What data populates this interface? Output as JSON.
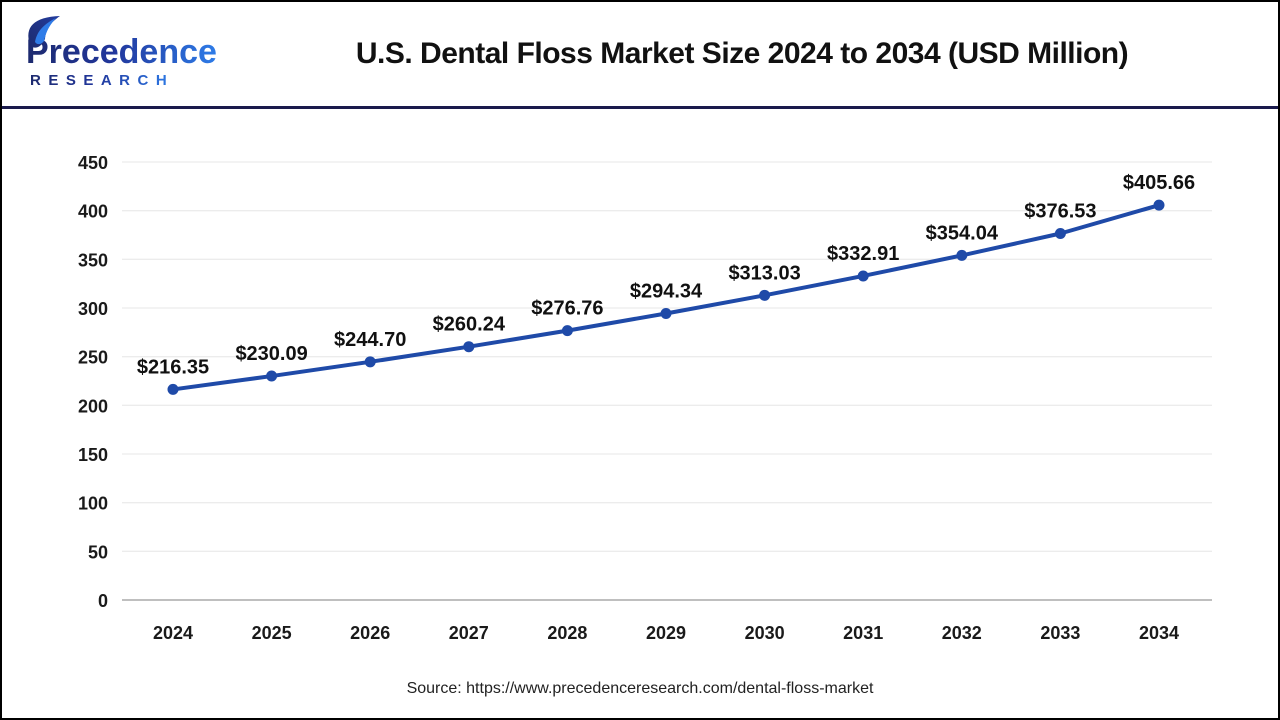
{
  "header": {
    "logo": {
      "name": "Precedence",
      "subname": "RESEARCH"
    },
    "title": "U.S. Dental Floss Market Size 2024 to 2034 (USD Million)"
  },
  "chart_data": {
    "type": "line",
    "title": "U.S. Dental Floss Market Size 2024 to 2034 (USD Million)",
    "unit": "USD Million",
    "categories": [
      "2024",
      "2025",
      "2026",
      "2027",
      "2028",
      "2029",
      "2030",
      "2031",
      "2032",
      "2033",
      "2034"
    ],
    "values": [
      216.35,
      230.09,
      244.7,
      260.24,
      276.76,
      294.34,
      313.03,
      332.91,
      354.04,
      376.53,
      405.66
    ],
    "point_labels": [
      "$216.35",
      "$230.09",
      "$244.70",
      "$260.24",
      "$276.76",
      "$294.34",
      "$313.03",
      "$332.91",
      "$354.04",
      "$376.53",
      "$405.66"
    ],
    "xlabel": "",
    "ylabel": "",
    "ylim": [
      0,
      450
    ],
    "yticks": [
      0,
      50,
      100,
      150,
      200,
      250,
      300,
      350,
      400,
      450
    ],
    "grid": true,
    "legend_position": "none",
    "line_color": "#1f4aa8",
    "grid_color": "#ececec",
    "axis_color": "#bfbfbf"
  },
  "footer": {
    "source": "Source: https://www.precedenceresearch.com/dental-floss-market"
  }
}
